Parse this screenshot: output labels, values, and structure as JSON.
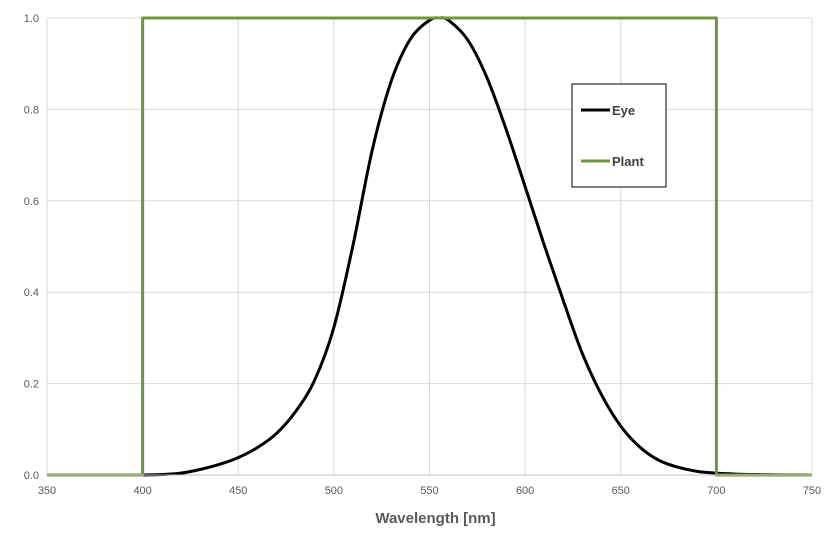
{
  "chart_data": {
    "type": "line",
    "title": "",
    "xlabel": "Wavelength [nm]",
    "ylabel": "",
    "xlim": [
      350,
      750
    ],
    "ylim": [
      0,
      1.0
    ],
    "x_ticks": [
      350,
      400,
      450,
      500,
      550,
      600,
      650,
      700,
      750
    ],
    "y_ticks": [
      0.0,
      0.2,
      0.4,
      0.6,
      0.8,
      1.0
    ],
    "x_tick_labels": [
      "350",
      "400",
      "450",
      "500",
      "550",
      "600",
      "650",
      "700",
      "750"
    ],
    "y_tick_labels": [
      "0.0",
      "0.2",
      "0.4",
      "0.6",
      "0.8",
      "1.0"
    ],
    "grid": true,
    "legend_position": "top-right",
    "series": [
      {
        "name": "Eye",
        "color": "#000000",
        "x": [
          400,
          410,
          420,
          430,
          440,
          450,
          460,
          470,
          480,
          490,
          500,
          510,
          520,
          530,
          540,
          550,
          555,
          560,
          570,
          580,
          590,
          600,
          610,
          620,
          630,
          640,
          650,
          660,
          670,
          680,
          690,
          700,
          710,
          720,
          730,
          740,
          750
        ],
        "y": [
          0.0,
          0.001,
          0.004,
          0.012,
          0.023,
          0.038,
          0.06,
          0.091,
          0.139,
          0.208,
          0.323,
          0.503,
          0.71,
          0.862,
          0.954,
          0.995,
          1.0,
          0.995,
          0.952,
          0.87,
          0.757,
          0.631,
          0.503,
          0.381,
          0.265,
          0.175,
          0.107,
          0.061,
          0.032,
          0.017,
          0.008,
          0.004,
          0.002,
          0.001,
          0.0005,
          0.0002,
          0.0001
        ]
      },
      {
        "name": "Plant",
        "color": "#70963c",
        "x": [
          350,
          400,
          400,
          700,
          700,
          750
        ],
        "y": [
          0,
          0,
          1,
          1,
          0,
          0
        ]
      }
    ]
  }
}
